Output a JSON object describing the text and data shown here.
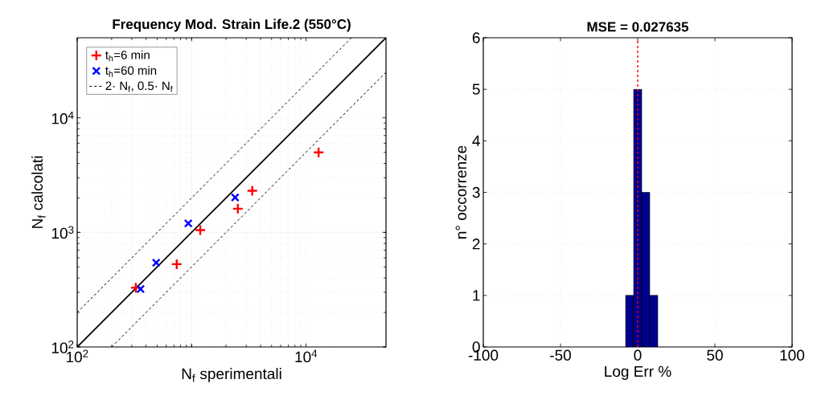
{
  "chart_data": [
    {
      "type": "scatter",
      "title": "Frequency Mod. Strain Life.2 (550°C)",
      "xlabel": "N$_{f}$ sperimentali",
      "ylabel": "N$_{f}$ calcolati",
      "log": "xy",
      "grid": true,
      "legend": "top left",
      "xlim": [
        100,
        50000
      ],
      "ylim": [
        100,
        50000
      ],
      "xticks": [
        {
          "value": 100,
          "label": "10$^{2}$"
        },
        {
          "value": 1000,
          "label": null
        },
        {
          "value": 10000,
          "label": "10$^{4}$"
        }
      ],
      "yticks": [
        {
          "value": 100,
          "label": "10$^{2}$"
        },
        {
          "value": 1000,
          "label": "10$^{3}$"
        },
        {
          "value": 10000,
          "label": "10$^{4}$"
        }
      ],
      "series": [
        {
          "name": "t$_{h}$=6 min",
          "color": "#ff0000",
          "marker": "plus",
          "x": [
            325,
            741,
            1191,
            2535,
            3390,
            12880
          ],
          "values": [
            329,
            528,
            1047,
            1610,
            2310,
            4990
          ]
        },
        {
          "name": "t$_{h}$=60 min",
          "color": "#0000ff",
          "marker": "cross",
          "x": [
            358,
            490,
            935,
            2400
          ],
          "values": [
            320,
            543,
            1199,
            2018
          ]
        },
        {
          "name": "2· N$_{f}$, 0.5· N$_{f}$",
          "type": "line",
          "color": "#000000",
          "marker": "none",
          "line_style": "dashed",
          "x": [
            100,
            25000
          ],
          "values": [
            200,
            50000
          ]
        },
        {
          "type": "line",
          "color": "#000000",
          "marker": "none",
          "line_style": "dashed",
          "x": [
            200,
            50000
          ],
          "values": [
            100,
            25000
          ]
        },
        {
          "type": "line",
          "color": "#000000",
          "marker": "none",
          "line_style": "solid",
          "x": [
            100,
            50000
          ],
          "values": [
            100,
            50000
          ]
        }
      ]
    },
    {
      "type": "histogram",
      "title": "MSE = 0.027635",
      "xlabel": "Log Err %",
      "ylabel": "n° occorrenze",
      "grid": true,
      "color": "#00008f",
      "bins": [
        -7.8,
        -2.6,
        2.6,
        7.8,
        13
      ],
      "values": [
        1,
        5,
        3,
        1
      ],
      "xlim": [
        -100,
        100
      ],
      "ylim": [
        0,
        6
      ],
      "xticks": [
        -100,
        -50,
        0,
        50,
        100
      ],
      "yticks": [
        0,
        1,
        2,
        3,
        4,
        5,
        6
      ],
      "ref_lines": [
        {
          "axis": "x",
          "value": 0,
          "color": "#ff0000",
          "line_style": "dashed"
        }
      ]
    }
  ]
}
